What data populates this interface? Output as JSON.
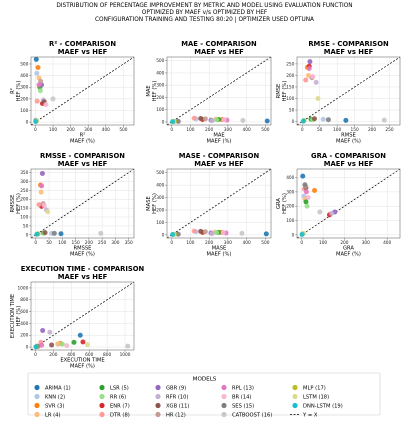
{
  "figure": {
    "suptitle": [
      "DISTRIBUTION OF PERCENTAGE IMPROVEMENT BY METRIC AND MODEL USING EVALUATION FUNCTION",
      "OPTIMIZED BY MAEF v/s OPTIMIZED BY HEF",
      "CONFIGURATION TRAINING AND TESTING 80:20 | OPTIMIZER USED OPTUNA"
    ]
  },
  "legend": {
    "title": "MODELS",
    "entries": [
      {
        "label": "ARIMA (1)",
        "color": "#1f77b4"
      },
      {
        "label": "KNN (2)",
        "color": "#aec7e8"
      },
      {
        "label": "SVR (3)",
        "color": "#ff7f0e"
      },
      {
        "label": "LR (4)",
        "color": "#ffbb78"
      },
      {
        "label": "LSR (5)",
        "color": "#2ca02c"
      },
      {
        "label": "RR (6)",
        "color": "#98df8a"
      },
      {
        "label": "ENR (7)",
        "color": "#d62728"
      },
      {
        "label": "DTR (8)",
        "color": "#ff9896"
      },
      {
        "label": "GBR (9)",
        "color": "#9467bd"
      },
      {
        "label": "RFR (10)",
        "color": "#c5b0d5"
      },
      {
        "label": "XGB (11)",
        "color": "#8c564b"
      },
      {
        "label": "HR (12)",
        "color": "#c49c94"
      },
      {
        "label": "RPL (13)",
        "color": "#e377c2"
      },
      {
        "label": "BR (14)",
        "color": "#f7b6d2"
      },
      {
        "label": "SES (15)",
        "color": "#7f7f7f"
      },
      {
        "label": "CATBOOST (16)",
        "color": "#c7c7c7"
      },
      {
        "label": "MLP (17)",
        "color": "#bcbd22"
      },
      {
        "label": "LSTM (18)",
        "color": "#dbdb8d"
      },
      {
        "label": "DNN-LSTM (19)",
        "color": "#17becf"
      },
      {
        "label": "Y = X",
        "color": "#000000",
        "line": "dashed"
      }
    ]
  },
  "chart_data": [
    {
      "type": "scatter",
      "title": "R² - COMPARISON",
      "subtitle": "MAEF vs HEF",
      "xlabel": "R²\nMAEF (%)",
      "ylabel": "R²\nHEF (%)",
      "xlim": [
        -25,
        560
      ],
      "ylim": [
        -25,
        560
      ],
      "xticks": [
        0,
        100,
        200,
        300,
        400,
        500
      ],
      "yticks": [
        0,
        100,
        200,
        300,
        400,
        500
      ],
      "grid": true,
      "reference_line": "y = x",
      "points": [
        {
          "series": "ARIMA (1)",
          "x": 5,
          "y": 540
        },
        {
          "series": "KNN (2)",
          "x": 8,
          "y": 420
        },
        {
          "series": "SVR (3)",
          "x": 15,
          "y": 470
        },
        {
          "series": "LR (4)",
          "x": 20,
          "y": 380
        },
        {
          "series": "LSR (5)",
          "x": 25,
          "y": 300
        },
        {
          "series": "RR (6)",
          "x": 28,
          "y": 270
        },
        {
          "series": "ENR (7)",
          "x": 40,
          "y": 160
        },
        {
          "series": "DTR (8)",
          "x": 10,
          "y": 180
        },
        {
          "series": "GBR (9)",
          "x": 35,
          "y": 320
        },
        {
          "series": "RFR (10)",
          "x": 45,
          "y": 190
        },
        {
          "series": "XGB (11)",
          "x": 50,
          "y": 175
        },
        {
          "series": "HR (12)",
          "x": 30,
          "y": 350
        },
        {
          "series": "RPL (13)",
          "x": 20,
          "y": 320
        },
        {
          "series": "BR (14)",
          "x": 60,
          "y": 150
        },
        {
          "series": "SES (15)",
          "x": 3,
          "y": 15
        },
        {
          "series": "CATBOOST (16)",
          "x": 100,
          "y": 200
        },
        {
          "series": "MLP (17)",
          "x": 5,
          "y": 10
        },
        {
          "series": "LSTM (18)",
          "x": 8,
          "y": 12
        },
        {
          "series": "DNN-LSTM (19)",
          "x": 2,
          "y": 5
        }
      ]
    },
    {
      "type": "scatter",
      "title": "MAE - COMPARISON",
      "subtitle": "MAEF vs HEF",
      "xlabel": "MAE\nMAEF (%)",
      "ylabel": "MAE\nHEF (%)",
      "xlim": [
        -25,
        530
      ],
      "ylim": [
        -25,
        530
      ],
      "xticks": [
        0,
        100,
        200,
        300,
        400,
        500
      ],
      "yticks": [
        0,
        100,
        200,
        300,
        400,
        500
      ],
      "grid": true,
      "reference_line": "y = x",
      "points": [
        {
          "series": "ARIMA (1)",
          "x": 510,
          "y": 8
        },
        {
          "series": "KNN (2)",
          "x": 130,
          "y": 25
        },
        {
          "series": "SVR (3)",
          "x": 270,
          "y": 20
        },
        {
          "series": "LR (4)",
          "x": 235,
          "y": 22
        },
        {
          "series": "LSR (5)",
          "x": 250,
          "y": 20
        },
        {
          "series": "RR (6)",
          "x": 240,
          "y": 18
        },
        {
          "series": "ENR (7)",
          "x": 165,
          "y": 20
        },
        {
          "series": "DTR (8)",
          "x": 120,
          "y": 30
        },
        {
          "series": "GBR (9)",
          "x": 210,
          "y": 15
        },
        {
          "series": "RFR (10)",
          "x": 215,
          "y": 10
        },
        {
          "series": "XGB (11)",
          "x": 155,
          "y": 28
        },
        {
          "series": "HR (12)",
          "x": 180,
          "y": 25
        },
        {
          "series": "RPL (13)",
          "x": 295,
          "y": 15
        },
        {
          "series": "BR (14)",
          "x": 280,
          "y": 18
        },
        {
          "series": "SES (15)",
          "x": 35,
          "y": 5
        },
        {
          "series": "CATBOOST (16)",
          "x": 380,
          "y": 12
        },
        {
          "series": "MLP (17)",
          "x": 15,
          "y": 5
        },
        {
          "series": "LSTM (18)",
          "x": 10,
          "y": 4
        },
        {
          "series": "DNN-LSTM (19)",
          "x": 5,
          "y": 3
        }
      ]
    },
    {
      "type": "scatter",
      "title": "RMSE - COMPARISON",
      "subtitle": "MAEF vs HEF",
      "xlabel": "RMSE\nMAEF (%)",
      "ylabel": "RMSE\nHEF (%)",
      "xlim": [
        -15,
        280
      ],
      "ylim": [
        -15,
        280
      ],
      "xticks": [
        0,
        50,
        100,
        150,
        200,
        250
      ],
      "yticks": [
        0,
        50,
        100,
        150,
        200,
        250
      ],
      "grid": true,
      "reference_line": "y = x",
      "points": [
        {
          "series": "ARIMA (1)",
          "x": 125,
          "y": 5
        },
        {
          "series": "KNN (2)",
          "x": 60,
          "y": 10
        },
        {
          "series": "SVR (3)",
          "x": 15,
          "y": 235
        },
        {
          "series": "LR (4)",
          "x": 18,
          "y": 200
        },
        {
          "series": "LSR (5)",
          "x": 25,
          "y": 10
        },
        {
          "series": "RR (6)",
          "x": 30,
          "y": 8
        },
        {
          "series": "ENR (7)",
          "x": 20,
          "y": 240
        },
        {
          "series": "DTR (8)",
          "x": 10,
          "y": 180
        },
        {
          "series": "GBR (9)",
          "x": 22,
          "y": 260
        },
        {
          "series": "RFR (10)",
          "x": 40,
          "y": 170
        },
        {
          "series": "XGB (11)",
          "x": 35,
          "y": 12
        },
        {
          "series": "HR (12)",
          "x": 28,
          "y": 190
        },
        {
          "series": "RPL (13)",
          "x": 20,
          "y": 230
        },
        {
          "series": "BR (14)",
          "x": 30,
          "y": 195
        },
        {
          "series": "SES (15)",
          "x": 75,
          "y": 8
        },
        {
          "series": "CATBOOST (16)",
          "x": 235,
          "y": 6
        },
        {
          "series": "MLP (17)",
          "x": 5,
          "y": 4
        },
        {
          "series": "LSTM (18)",
          "x": 45,
          "y": 100
        },
        {
          "series": "DNN-LSTM (19)",
          "x": 3,
          "y": 2
        }
      ]
    },
    {
      "type": "scatter",
      "title": "RMSSE - COMPARISON",
      "subtitle": "MAEF vs HEF",
      "xlabel": "RMSSE\nMAEF (%)",
      "ylabel": "RMSSE\nHEF (%)",
      "xlim": [
        -18,
        370
      ],
      "ylim": [
        -18,
        370
      ],
      "xticks": [
        0,
        50,
        100,
        150,
        200,
        250,
        300,
        350
      ],
      "yticks": [
        0,
        50,
        100,
        150,
        200,
        250,
        300,
        350
      ],
      "grid": true,
      "reference_line": "y = x",
      "points": [
        {
          "series": "ARIMA (1)",
          "x": 95,
          "y": 6
        },
        {
          "series": "KNN (2)",
          "x": 60,
          "y": 8
        },
        {
          "series": "SVR (3)",
          "x": 18,
          "y": 280
        },
        {
          "series": "LR (4)",
          "x": 20,
          "y": 240
        },
        {
          "series": "LSR (5)",
          "x": 28,
          "y": 10
        },
        {
          "series": "RR (6)",
          "x": 30,
          "y": 8
        },
        {
          "series": "ENR (7)",
          "x": 22,
          "y": 160
        },
        {
          "series": "DTR (8)",
          "x": 12,
          "y": 170
        },
        {
          "series": "GBR (9)",
          "x": 25,
          "y": 345
        },
        {
          "series": "RFR (10)",
          "x": 40,
          "y": 140
        },
        {
          "series": "XGB (11)",
          "x": 35,
          "y": 12
        },
        {
          "series": "HR (12)",
          "x": 28,
          "y": 175
        },
        {
          "series": "RPL (13)",
          "x": 22,
          "y": 275
        },
        {
          "series": "BR (14)",
          "x": 32,
          "y": 165
        },
        {
          "series": "SES (15)",
          "x": 70,
          "y": 8
        },
        {
          "series": "CATBOOST (16)",
          "x": 245,
          "y": 8
        },
        {
          "series": "MLP (17)",
          "x": 8,
          "y": 5
        },
        {
          "series": "LSTM (18)",
          "x": 45,
          "y": 130
        },
        {
          "series": "DNN-LSTM (19)",
          "x": 4,
          "y": 3
        }
      ]
    },
    {
      "type": "scatter",
      "title": "MASE - COMPARISON",
      "subtitle": "MAEF vs HEF",
      "xlabel": "MASE\nMAEF (%)",
      "ylabel": "MASE\nHEF (%)",
      "xlim": [
        -25,
        530
      ],
      "ylim": [
        -25,
        530
      ],
      "xticks": [
        0,
        100,
        200,
        300,
        400,
        500
      ],
      "yticks": [
        0,
        100,
        200,
        300,
        400,
        500
      ],
      "grid": true,
      "reference_line": "y = x",
      "points": [
        {
          "series": "ARIMA (1)",
          "x": 505,
          "y": 8
        },
        {
          "series": "KNN (2)",
          "x": 130,
          "y": 25
        },
        {
          "series": "SVR (3)",
          "x": 265,
          "y": 20
        },
        {
          "series": "LR (4)",
          "x": 230,
          "y": 22
        },
        {
          "series": "LSR (5)",
          "x": 250,
          "y": 20
        },
        {
          "series": "RR (6)",
          "x": 240,
          "y": 18
        },
        {
          "series": "ENR (7)",
          "x": 165,
          "y": 20
        },
        {
          "series": "DTR (8)",
          "x": 120,
          "y": 30
        },
        {
          "series": "GBR (9)",
          "x": 210,
          "y": 15
        },
        {
          "series": "RFR (10)",
          "x": 215,
          "y": 10
        },
        {
          "series": "XGB (11)",
          "x": 155,
          "y": 28
        },
        {
          "series": "HR (12)",
          "x": 180,
          "y": 25
        },
        {
          "series": "RPL (13)",
          "x": 290,
          "y": 15
        },
        {
          "series": "BR (14)",
          "x": 275,
          "y": 18
        },
        {
          "series": "SES (15)",
          "x": 35,
          "y": 5
        },
        {
          "series": "CATBOOST (16)",
          "x": 375,
          "y": 12
        },
        {
          "series": "MLP (17)",
          "x": 15,
          "y": 5
        },
        {
          "series": "LSTM (18)",
          "x": 10,
          "y": 4
        },
        {
          "series": "DNN-LSTM (19)",
          "x": 5,
          "y": 3
        }
      ]
    },
    {
      "type": "scatter",
      "title": "GRA - COMPARISON",
      "subtitle": "MAEF vs HEF",
      "xlabel": "GRA\nMAEF (%)",
      "ylabel": "GRA\nHEF (%)",
      "xlim": [
        -22,
        460
      ],
      "ylim": [
        -22,
        460
      ],
      "xticks": [
        0,
        100,
        200,
        300,
        400
      ],
      "yticks": [
        0,
        100,
        200,
        300,
        400
      ],
      "grid": true,
      "reference_line": "y = x",
      "points": [
        {
          "series": "ARIMA (1)",
          "x": 5,
          "y": 410
        },
        {
          "series": "KNN (2)",
          "x": 10,
          "y": 270
        },
        {
          "series": "SVR (3)",
          "x": 60,
          "y": 310
        },
        {
          "series": "LR (4)",
          "x": 15,
          "y": 250
        },
        {
          "series": "LSR (5)",
          "x": 20,
          "y": 230
        },
        {
          "series": "RR (6)",
          "x": 25,
          "y": 200
        },
        {
          "series": "ENR (7)",
          "x": 130,
          "y": 140
        },
        {
          "series": "DTR (8)",
          "x": 12,
          "y": 320
        },
        {
          "series": "GBR (9)",
          "x": 155,
          "y": 160
        },
        {
          "series": "RFR (10)",
          "x": 140,
          "y": 150
        },
        {
          "series": "XGB (11)",
          "x": 20,
          "y": 330
        },
        {
          "series": "HR (12)",
          "x": 18,
          "y": 340
        },
        {
          "series": "RPL (13)",
          "x": 22,
          "y": 300
        },
        {
          "series": "BR (14)",
          "x": 30,
          "y": 260
        },
        {
          "series": "SES (15)",
          "x": 15,
          "y": 350
        },
        {
          "series": "CATBOOST (16)",
          "x": 85,
          "y": 160
        },
        {
          "series": "MLP (17)",
          "x": 5,
          "y": 8
        },
        {
          "series": "LSTM (18)",
          "x": 8,
          "y": 10
        },
        {
          "series": "DNN-LSTM (19)",
          "x": 2,
          "y": 3
        }
      ]
    },
    {
      "type": "scatter",
      "title": "EXECUTION TIME - COMPARISON",
      "subtitle": "MAEF vs HEF",
      "xlabel": "EXECUTION TIME\nMAEF (%)",
      "ylabel": "EXECUTION TIME\nHEF (%)",
      "xlim": [
        -50,
        1100
      ],
      "ylim": [
        -50,
        1100
      ],
      "xticks": [
        0,
        200,
        400,
        600,
        800,
        1000
      ],
      "yticks": [
        0,
        200,
        400,
        600,
        800,
        1000
      ],
      "grid": true,
      "reference_line": "y = x",
      "points": [
        {
          "series": "ARIMA (1)",
          "x": 500,
          "y": 200
        },
        {
          "series": "KNN (2)",
          "x": 250,
          "y": 50
        },
        {
          "series": "SVR (3)",
          "x": 280,
          "y": 60
        },
        {
          "series": "LR (4)",
          "x": 250,
          "y": 55
        },
        {
          "series": "LSR (5)",
          "x": 430,
          "y": 80
        },
        {
          "series": "RR (6)",
          "x": 300,
          "y": 50
        },
        {
          "series": "ENR (7)",
          "x": 530,
          "y": 85
        },
        {
          "series": "DTR (8)",
          "x": 60,
          "y": 80
        },
        {
          "series": "GBR (9)",
          "x": 80,
          "y": 280
        },
        {
          "series": "RFR (10)",
          "x": 160,
          "y": 250
        },
        {
          "series": "XGB (11)",
          "x": 180,
          "y": 35
        },
        {
          "series": "HR (12)",
          "x": 30,
          "y": 10
        },
        {
          "series": "RPL (13)",
          "x": 70,
          "y": 30
        },
        {
          "series": "BR (14)",
          "x": 350,
          "y": 25
        },
        {
          "series": "SES (15)",
          "x": 20,
          "y": 15
        },
        {
          "series": "CATBOOST (16)",
          "x": 1030,
          "y": 15
        },
        {
          "series": "MLP (17)",
          "x": 10,
          "y": 5
        },
        {
          "series": "LSTM (18)",
          "x": 580,
          "y": 40
        },
        {
          "series": "DNN-LSTM (19)",
          "x": 5,
          "y": 3
        }
      ]
    }
  ]
}
